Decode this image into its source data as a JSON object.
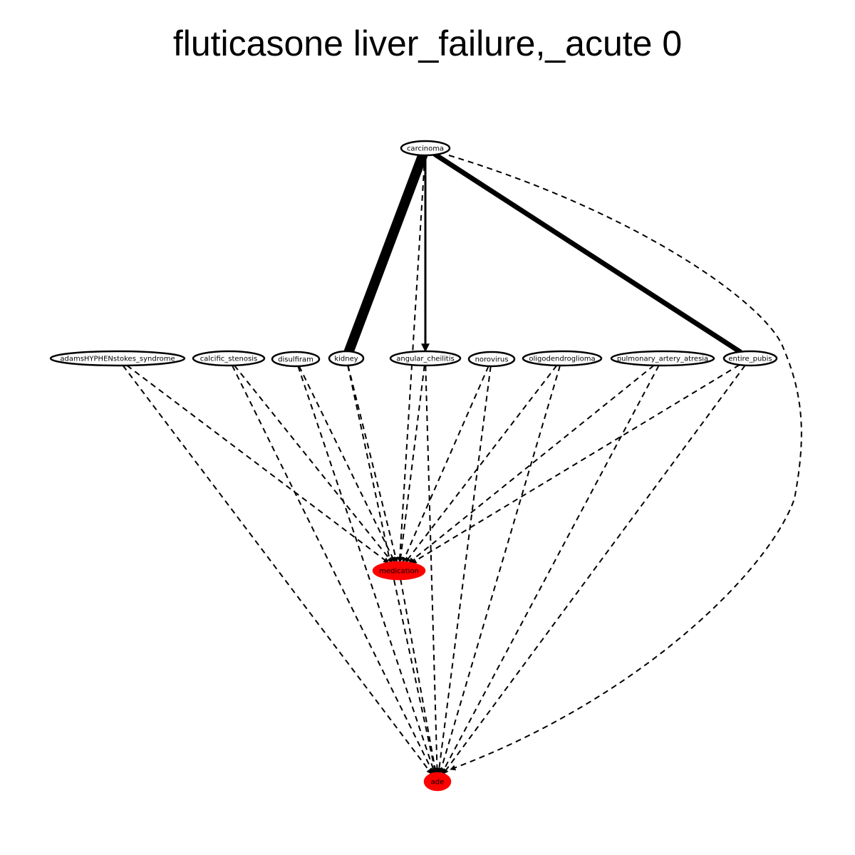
{
  "title": "fluticasone liver_failure,_acute 0",
  "colors": {
    "target_fill": "#ff0000",
    "node_fill": "#ffffff",
    "stroke": "#000000"
  },
  "nodes": [
    {
      "id": "carcinoma",
      "label": "carcinoma",
      "highlight": false
    },
    {
      "id": "adams",
      "label": "adamsHYPHENstokes_syndrome",
      "highlight": false
    },
    {
      "id": "calcific",
      "label": "calcific_stenosis",
      "highlight": false
    },
    {
      "id": "disulfiram",
      "label": "disulfiram",
      "highlight": false
    },
    {
      "id": "kidney",
      "label": "kidney",
      "highlight": false
    },
    {
      "id": "angular",
      "label": "angular_cheilitis",
      "highlight": false
    },
    {
      "id": "norovirus",
      "label": "norovirus",
      "highlight": false
    },
    {
      "id": "oligo",
      "label": "oligodendroglioma",
      "highlight": false
    },
    {
      "id": "pulmonary",
      "label": "pulmonary_artery_atresia",
      "highlight": false
    },
    {
      "id": "pubis",
      "label": "entire_pubis",
      "highlight": false
    },
    {
      "id": "medication",
      "label": "medication",
      "highlight": true
    },
    {
      "id": "ade",
      "label": "ade",
      "highlight": true
    }
  ],
  "edges": [
    {
      "from": "carcinoma",
      "to": "kidney",
      "style": "solid",
      "weight": 14
    },
    {
      "from": "carcinoma",
      "to": "angular",
      "style": "solid",
      "weight": 3
    },
    {
      "from": "carcinoma",
      "to": "pubis",
      "style": "solid",
      "weight": 7
    },
    {
      "from": "carcinoma",
      "to": "medication",
      "style": "dashed",
      "weight": 2
    },
    {
      "from": "carcinoma",
      "to": "ade",
      "style": "dashed",
      "weight": 2
    },
    {
      "from": "adams",
      "to": "medication",
      "style": "dashed",
      "weight": 2
    },
    {
      "from": "adams",
      "to": "ade",
      "style": "dashed",
      "weight": 2
    },
    {
      "from": "calcific",
      "to": "medication",
      "style": "dashed",
      "weight": 2
    },
    {
      "from": "calcific",
      "to": "ade",
      "style": "dashed",
      "weight": 2
    },
    {
      "from": "disulfiram",
      "to": "medication",
      "style": "dashed",
      "weight": 2
    },
    {
      "from": "disulfiram",
      "to": "ade",
      "style": "dashed",
      "weight": 2
    },
    {
      "from": "kidney",
      "to": "medication",
      "style": "dashed",
      "weight": 2
    },
    {
      "from": "kidney",
      "to": "ade",
      "style": "dashed",
      "weight": 2
    },
    {
      "from": "angular",
      "to": "medication",
      "style": "dashed",
      "weight": 2
    },
    {
      "from": "angular",
      "to": "ade",
      "style": "dashed",
      "weight": 2
    },
    {
      "from": "norovirus",
      "to": "medication",
      "style": "dashed",
      "weight": 2
    },
    {
      "from": "norovirus",
      "to": "ade",
      "style": "dashed",
      "weight": 2
    },
    {
      "from": "oligo",
      "to": "medication",
      "style": "dashed",
      "weight": 2
    },
    {
      "from": "oligo",
      "to": "ade",
      "style": "dashed",
      "weight": 2
    },
    {
      "from": "pulmonary",
      "to": "medication",
      "style": "dashed",
      "weight": 2
    },
    {
      "from": "pulmonary",
      "to": "ade",
      "style": "dashed",
      "weight": 2
    },
    {
      "from": "pubis",
      "to": "medication",
      "style": "dashed",
      "weight": 2
    },
    {
      "from": "pubis",
      "to": "ade",
      "style": "dashed",
      "weight": 2
    },
    {
      "from": "medication",
      "to": "ade",
      "style": "dashed",
      "weight": 2
    }
  ]
}
